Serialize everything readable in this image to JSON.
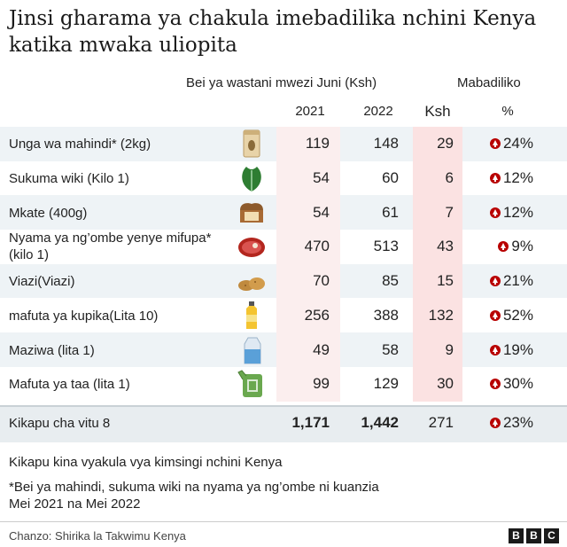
{
  "header": {
    "title": "Jinsi gharama ya chakula imebadilika nchini Kenya katika mwaka uliopita",
    "avg_price_label": "Bei ya wastani mwezi Juni (Ksh)",
    "change_label": "Mabadiliko",
    "col_2021": "2021",
    "col_2022": "2022",
    "col_ksh": "Ksh",
    "col_pct": "%"
  },
  "chart_data": {
    "type": "table",
    "columns": [
      "2021",
      "2022",
      "Ksh",
      "%"
    ],
    "rows": [
      {
        "label": "Unga wa mahindi* (2kg)",
        "icon": "flour-bag-icon",
        "v2021": "119",
        "v2022": "148",
        "ksh": "29",
        "pct": "24%"
      },
      {
        "label": "Sukuma wiki (Kilo 1)",
        "icon": "kale-leaf-icon",
        "v2021": "54",
        "v2022": "60",
        "ksh": "6",
        "pct": "12%"
      },
      {
        "label": "Mkate (400g)",
        "icon": "bread-loaf-icon",
        "v2021": "54",
        "v2022": "61",
        "ksh": "7",
        "pct": "12%"
      },
      {
        "label": "Nyama ya ng’ombe yenye mifupa*\n(kilo 1)",
        "icon": "steak-icon",
        "v2021": "470",
        "v2022": "513",
        "ksh": "43",
        "pct": "9%"
      },
      {
        "label": "Viazi(Viazi)",
        "icon": "potatoes-icon",
        "v2021": "70",
        "v2022": "85",
        "ksh": "15",
        "pct": "21%"
      },
      {
        "label": "mafuta ya kupika(Lita 10)",
        "icon": "oil-bottle-icon",
        "v2021": "256",
        "v2022": "388",
        "ksh": "132",
        "pct": "52%"
      },
      {
        "label": "Maziwa  (lita 1)",
        "icon": "milk-carton-icon",
        "v2021": "49",
        "v2022": "58",
        "ksh": "9",
        "pct": "19%"
      },
      {
        "label": "Mafuta ya taa (lita 1)",
        "icon": "jerrycan-icon",
        "v2021": "99",
        "v2022": "129",
        "ksh": "30",
        "pct": "30%"
      }
    ],
    "total": {
      "label": "Kikapu cha vitu 8",
      "v2021": "1,171",
      "v2022": "1,442",
      "ksh": "271",
      "pct": "23%"
    },
    "increase_color": "#b80000"
  },
  "notes": {
    "note1": "Kikapu kina vyakula vya kimsingi nchini Kenya",
    "note2": "*Bei ya mahindi, sukuma wiki  na nyama ya ng’ombe ni kuanzia\n  Mei 2021 na Mei 2022"
  },
  "footer": {
    "source": "Chanzo: Shirika la Takwimu Kenya",
    "logo_letters": [
      "B",
      "B",
      "C"
    ]
  }
}
